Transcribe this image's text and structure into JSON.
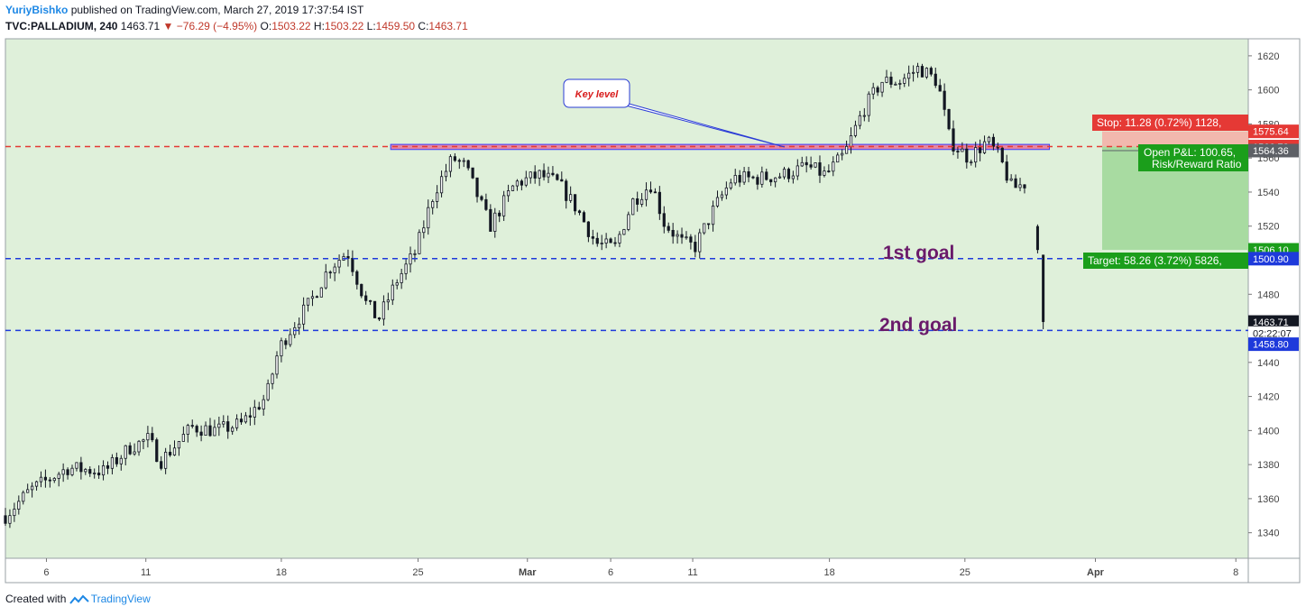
{
  "header": {
    "author": "YuriyBishko",
    "published": "published on TradingView.com, March 27, 2019 17:37:54 IST",
    "symbol": "TVC:PALLADIUM, 240",
    "last": "1463.71",
    "change": "−76.29 (−4.95%)",
    "o_label": "O:",
    "o": "1503.22",
    "h_label": "H:",
    "h": "1503.22",
    "l_label": "L:",
    "l": "1459.50",
    "c_label": "C:",
    "c": "1463.71"
  },
  "footer": {
    "created_with": "Created with",
    "brand": "TradingView"
  },
  "colors": {
    "background": "#dff0da",
    "bull": "#ffffff",
    "bear": "#131722",
    "red_level": "#e53935",
    "blue_level": "#1e3adb",
    "key_zone": "#e57399",
    "goal_text": "#6a1a6a",
    "stop_zone": "#f2b8ae",
    "target_zone": "#a8dba1"
  },
  "chart_data": {
    "type": "candlestick",
    "instrument": "TVC:PALLADIUM",
    "timeframe": "240",
    "ylim": [
      1325,
      1630
    ],
    "y_ticks": [
      1340,
      1360,
      1380,
      1400,
      1420,
      1440,
      1460,
      1480,
      1500,
      1520,
      1540,
      1560,
      1580,
      1600,
      1620
    ],
    "x_ticks": [
      {
        "label": "6",
        "t": 0.033
      },
      {
        "label": "11",
        "t": 0.113
      },
      {
        "label": "18",
        "t": 0.222
      },
      {
        "label": "25",
        "t": 0.332
      },
      {
        "label": "Mar",
        "t": 0.42,
        "bold": true
      },
      {
        "label": "6",
        "t": 0.487
      },
      {
        "label": "11",
        "t": 0.553
      },
      {
        "label": "18",
        "t": 0.663
      },
      {
        "label": "25",
        "t": 0.772
      },
      {
        "label": "Apr",
        "t": 0.877,
        "bold": true
      },
      {
        "label": "8",
        "t": 0.99
      }
    ],
    "close_path": [
      [
        0,
        1350
      ],
      [
        0.02,
        1365
      ],
      [
        0.05,
        1378
      ],
      [
        0.08,
        1376
      ],
      [
        0.1,
        1390
      ],
      [
        0.115,
        1395
      ],
      [
        0.125,
        1382
      ],
      [
        0.15,
        1402
      ],
      [
        0.17,
        1400
      ],
      [
        0.19,
        1404
      ],
      [
        0.21,
        1420
      ],
      [
        0.22,
        1448
      ],
      [
        0.23,
        1460
      ],
      [
        0.245,
        1475
      ],
      [
        0.26,
        1495
      ],
      [
        0.275,
        1505
      ],
      [
        0.29,
        1475
      ],
      [
        0.3,
        1465
      ],
      [
        0.315,
        1488
      ],
      [
        0.33,
        1505
      ],
      [
        0.345,
        1540
      ],
      [
        0.36,
        1560
      ],
      [
        0.37,
        1555
      ],
      [
        0.39,
        1520
      ],
      [
        0.41,
        1545
      ],
      [
        0.43,
        1550
      ],
      [
        0.445,
        1545
      ],
      [
        0.46,
        1530
      ],
      [
        0.475,
        1510
      ],
      [
        0.49,
        1507
      ],
      [
        0.505,
        1535
      ],
      [
        0.52,
        1545
      ],
      [
        0.53,
        1522
      ],
      [
        0.545,
        1510
      ],
      [
        0.555,
        1508
      ],
      [
        0.57,
        1530
      ],
      [
        0.585,
        1548
      ],
      [
        0.605,
        1548
      ],
      [
        0.625,
        1550
      ],
      [
        0.645,
        1555
      ],
      [
        0.66,
        1550
      ],
      [
        0.675,
        1562
      ],
      [
        0.69,
        1588
      ],
      [
        0.705,
        1605
      ],
      [
        0.72,
        1605
      ],
      [
        0.735,
        1613
      ],
      [
        0.75,
        1605
      ],
      [
        0.76,
        1570
      ],
      [
        0.775,
        1560
      ],
      [
        0.79,
        1570
      ],
      [
        0.8,
        1560
      ],
      [
        0.81,
        1542
      ],
      [
        0.82,
        1545
      ]
    ],
    "final_candles": [
      {
        "o": 1520,
        "h": 1521,
        "l": 1504,
        "c": 1506
      },
      {
        "o": 1503.22,
        "h": 1503.22,
        "l": 1459.5,
        "c": 1463.71
      }
    ],
    "levels": [
      {
        "name": "key-level-line",
        "price": 1566.72,
        "color": "red",
        "style": "dashed"
      },
      {
        "name": "1st-goal-line",
        "price": 1500.9,
        "color": "blue",
        "style": "dashed"
      },
      {
        "name": "2nd-goal-line",
        "price": 1458.8,
        "color": "blue",
        "style": "dashed"
      }
    ],
    "key_zone": {
      "from": 1565,
      "to": 1568,
      "t_start": 0.31,
      "t_end": 0.84
    },
    "annotations": {
      "key_level": "Key level",
      "first_goal": "1st goal",
      "second_goal": "2nd goal",
      "stop": "Stop: 11.28 (0.72%) 1128,",
      "pnl": "Open P&L: 100.65,",
      "rr": "Risk/Reward Ratio",
      "target": "Target: 58.26 (3.72%) 5826,"
    },
    "price_labels": [
      {
        "text": "1575.64",
        "price": 1575.64,
        "bg": "#e53935",
        "fg": "#ffffff"
      },
      {
        "text": "1566.72",
        "price": 1566.72,
        "bg": "#e53935",
        "fg": "#ffffff"
      },
      {
        "text": "1564.36",
        "price": 1564.36,
        "bg": "#5d6066",
        "fg": "#ffffff"
      },
      {
        "text": "1506.10",
        "price": 1506.1,
        "bg": "#1b9e1b",
        "fg": "#ffffff"
      },
      {
        "text": "1500.90",
        "price": 1500.9,
        "bg": "#1e3adb",
        "fg": "#ffffff"
      },
      {
        "text": "1463.71",
        "price": 1463.71,
        "bg": "#131722",
        "fg": "#ffffff"
      },
      {
        "text": "02:22:07",
        "price": 1457.2,
        "bg": "#ffffff",
        "fg": "#131722"
      },
      {
        "text": "1458.80",
        "price": 1450.7,
        "bg": "#1e3adb",
        "fg": "#ffffff"
      }
    ]
  }
}
